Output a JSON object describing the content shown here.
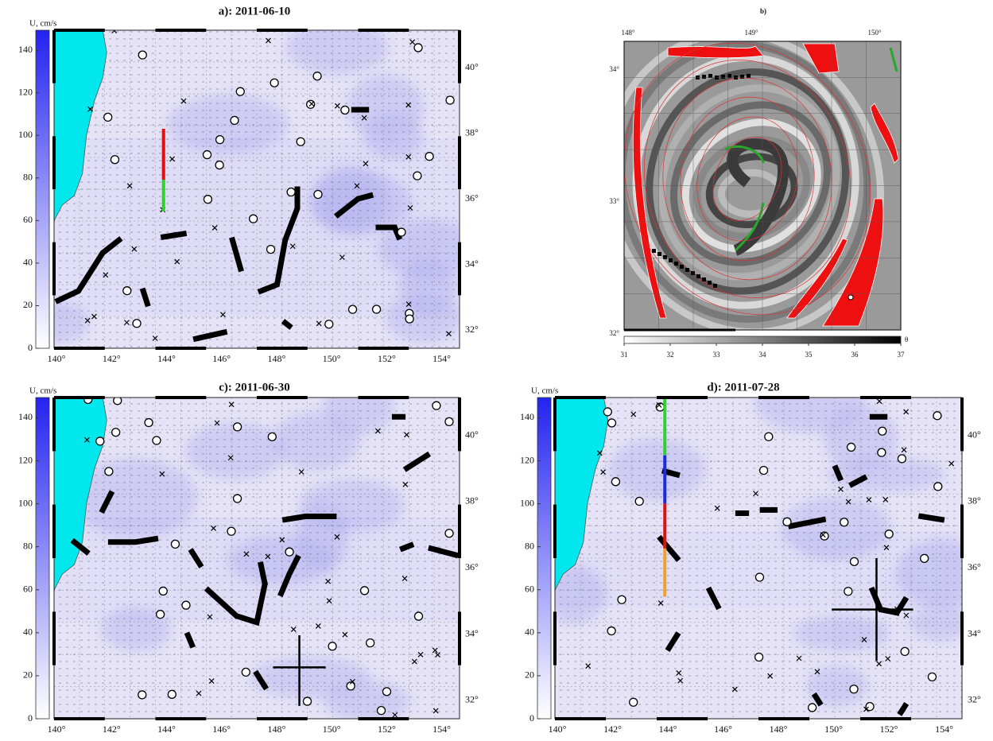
{
  "panels": [
    {
      "title": "a): 2011-06-10",
      "colorbar_label": "U, cm/s",
      "colorbar_ticks": [
        0,
        20,
        40,
        60,
        80,
        100,
        120,
        140
      ],
      "lon_ticks": [
        "140°",
        "142°",
        "144°",
        "146°",
        "148°",
        "150°",
        "152°",
        "154°"
      ],
      "lat_ticks": [
        "40°",
        "38°",
        "36°",
        "34°",
        "32°"
      ]
    },
    {
      "title": "b)",
      "colorbar_label": "θ",
      "colorbar_ticks": [
        31,
        32,
        33,
        34,
        35,
        36,
        37
      ],
      "lon_ticks": [
        "148°",
        "149°",
        "150°"
      ],
      "lat_ticks": [
        "34°",
        "33°",
        "32°"
      ]
    },
    {
      "title": "c): 2011-06-30",
      "colorbar_label": "U, cm/s",
      "colorbar_ticks": [
        0,
        20,
        40,
        60,
        80,
        100,
        120,
        140
      ],
      "lon_ticks": [
        "140°",
        "142°",
        "144°",
        "146°",
        "148°",
        "150°",
        "152°",
        "154°"
      ],
      "lat_ticks": [
        "40°",
        "38°",
        "36°",
        "34°",
        "32°"
      ]
    },
    {
      "title": "d): 2011-07-28",
      "colorbar_label": "U, cm/s",
      "colorbar_ticks": [
        0,
        20,
        40,
        60,
        80,
        100,
        120,
        140
      ],
      "lon_ticks": [
        "140°",
        "142°",
        "144°",
        "146°",
        "148°",
        "150°",
        "152°",
        "154°"
      ],
      "lat_ticks": [
        "40°",
        "38°",
        "36°",
        "34°",
        "32°"
      ]
    }
  ]
}
